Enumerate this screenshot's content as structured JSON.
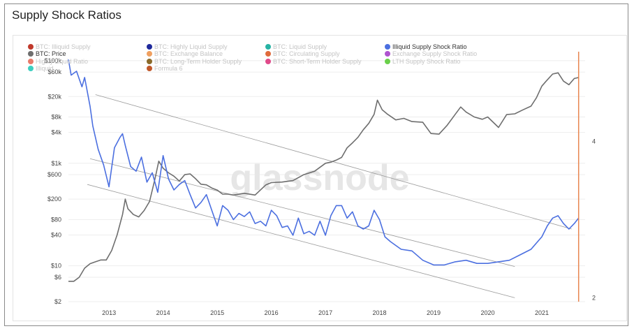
{
  "header": {
    "title": "Supply Shock Ratios"
  },
  "watermark": "glassnode",
  "colors": {
    "price": "#6e6e6e",
    "ratio": "#4b6fe0",
    "marker": "#e8854f",
    "channel": "#9a9a9a",
    "grid": "#ededed"
  },
  "legend": [
    {
      "label": "BTC: Illiquid Supply",
      "color": "#c0392b",
      "active": false
    },
    {
      "label": "BTC: Highly Liquid Supply",
      "color": "#1f2a9b",
      "active": false
    },
    {
      "label": "BTC: Liquid Supply",
      "color": "#27b3a4",
      "active": false
    },
    {
      "label": "Illiquid Supply Shock Ratio",
      "color": "#4b6fe0",
      "active": true
    },
    {
      "label": "BTC: Price",
      "color": "#6e6e6e",
      "active": true
    },
    {
      "label": "BTC: Exchange Balance",
      "color": "#f0a060",
      "active": false
    },
    {
      "label": "BTC: Circulating Supply",
      "color": "#e06b3c",
      "active": false
    },
    {
      "label": "Exchange Supply Shock Ratio",
      "color": "#b054d0",
      "active": false
    },
    {
      "label": "Highly Liquid Ratio",
      "color": "#e87a6a",
      "active": false
    },
    {
      "label": "BTC: Long-Term Holder Supply",
      "color": "#8a6a2a",
      "active": false
    },
    {
      "label": "BTC: Short-Term Holder Supply",
      "color": "#e04a8a",
      "active": false
    },
    {
      "label": "LTH Supply Shock Ratio",
      "color": "#6ad04a",
      "active": false
    },
    {
      "label": "Illiquid",
      "color": "#3ccfc0",
      "active": false
    },
    {
      "label": "Formula 6",
      "color": "#c0582a",
      "active": false
    }
  ],
  "chart_data": {
    "type": "line",
    "title": "Supply Shock Ratios",
    "x_ticks": [
      "2013",
      "2014",
      "2015",
      "2016",
      "2017",
      "2018",
      "2019",
      "2020",
      "2021"
    ],
    "x_range": [
      2012.25,
      2021.8
    ],
    "y_left": {
      "scale": "log",
      "range": [
        2,
        150000
      ],
      "ticks": [
        "$2",
        "$6",
        "$10",
        "$40",
        "$80",
        "$200",
        "$600",
        "$1k",
        "$4k",
        "$8k",
        "$20k",
        "$60k",
        "$100k"
      ],
      "tick_values": [
        2,
        6,
        10,
        40,
        80,
        200,
        600,
        1000,
        4000,
        8000,
        20000,
        60000,
        100000
      ]
    },
    "y_right": {
      "scale": "linear",
      "range": [
        1.95,
        5.15
      ],
      "ticks": [
        "2",
        "4"
      ],
      "tick_values": [
        2,
        4
      ]
    },
    "marker_x": 2021.68,
    "series": [
      {
        "name": "BTC: Price",
        "axis": "left",
        "color": "#6e6e6e",
        "x": [
          2012.25,
          2012.35,
          2012.45,
          2012.55,
          2012.65,
          2012.75,
          2012.85,
          2012.95,
          2013.05,
          2013.15,
          2013.25,
          2013.3,
          2013.35,
          2013.45,
          2013.55,
          2013.65,
          2013.75,
          2013.85,
          2013.92,
          2014.0,
          2014.1,
          2014.2,
          2014.3,
          2014.4,
          2014.5,
          2014.6,
          2014.7,
          2014.8,
          2014.9,
          2015.0,
          2015.1,
          2015.2,
          2015.3,
          2015.5,
          2015.7,
          2015.9,
          2016.0,
          2016.2,
          2016.4,
          2016.6,
          2016.8,
          2017.0,
          2017.1,
          2017.2,
          2017.3,
          2017.4,
          2017.5,
          2017.6,
          2017.7,
          2017.8,
          2017.9,
          2017.96,
          2018.05,
          2018.15,
          2018.3,
          2018.45,
          2018.6,
          2018.8,
          2018.95,
          2019.1,
          2019.25,
          2019.4,
          2019.5,
          2019.6,
          2019.75,
          2019.9,
          2020.0,
          2020.2,
          2020.35,
          2020.5,
          2020.65,
          2020.8,
          2020.9,
          2021.0,
          2021.08,
          2021.2,
          2021.3,
          2021.4,
          2021.5,
          2021.6,
          2021.68
        ],
        "values": [
          5,
          5,
          6,
          9,
          11,
          12,
          13,
          13,
          20,
          40,
          100,
          200,
          130,
          100,
          90,
          120,
          180,
          500,
          1100,
          800,
          650,
          560,
          450,
          600,
          620,
          500,
          390,
          380,
          330,
          300,
          250,
          250,
          240,
          260,
          240,
          380,
          420,
          430,
          460,
          600,
          700,
          1000,
          1050,
          1150,
          1300,
          2000,
          2500,
          3200,
          4500,
          6000,
          9000,
          17000,
          11000,
          9000,
          7000,
          7500,
          6500,
          6300,
          3800,
          3700,
          5500,
          9000,
          12500,
          10000,
          8000,
          7200,
          8000,
          5000,
          8900,
          9200,
          11000,
          13000,
          19000,
          32000,
          40000,
          55000,
          58000,
          40000,
          34000,
          45000,
          47000
        ]
      },
      {
        "name": "Illiquid Supply Shock Ratio",
        "axis": "right",
        "color": "#4b6fe0",
        "x": [
          2012.25,
          2012.3,
          2012.4,
          2012.5,
          2012.55,
          2012.65,
          2012.7,
          2012.8,
          2012.9,
          2013.0,
          2013.1,
          2013.2,
          2013.25,
          2013.3,
          2013.4,
          2013.5,
          2013.6,
          2013.7,
          2013.8,
          2013.9,
          2014.0,
          2014.1,
          2014.2,
          2014.3,
          2014.4,
          2014.5,
          2014.6,
          2014.7,
          2014.8,
          2014.9,
          2015.0,
          2015.1,
          2015.2,
          2015.3,
          2015.4,
          2015.5,
          2015.6,
          2015.7,
          2015.8,
          2015.9,
          2016.0,
          2016.1,
          2016.2,
          2016.3,
          2016.4,
          2016.5,
          2016.6,
          2016.7,
          2016.8,
          2016.9,
          2017.0,
          2017.1,
          2017.2,
          2017.3,
          2017.4,
          2017.5,
          2017.6,
          2017.7,
          2017.8,
          2017.9,
          2018.0,
          2018.1,
          2018.2,
          2018.4,
          2018.6,
          2018.8,
          2019.0,
          2019.2,
          2019.4,
          2019.6,
          2019.8,
          2020.0,
          2020.2,
          2020.4,
          2020.6,
          2020.8,
          2021.0,
          2021.1,
          2021.2,
          2021.3,
          2021.4,
          2021.5,
          2021.6,
          2021.68
        ],
        "values": [
          5.05,
          4.85,
          4.9,
          4.7,
          4.82,
          4.45,
          4.2,
          3.9,
          3.7,
          3.42,
          3.92,
          4.05,
          4.1,
          3.95,
          3.68,
          3.62,
          3.8,
          3.48,
          3.6,
          3.35,
          3.82,
          3.52,
          3.38,
          3.45,
          3.5,
          3.32,
          3.15,
          3.22,
          3.32,
          3.12,
          2.92,
          3.18,
          3.12,
          3.0,
          3.08,
          3.04,
          3.1,
          2.95,
          2.98,
          2.92,
          3.12,
          3.05,
          2.9,
          2.92,
          2.8,
          3.02,
          2.82,
          2.85,
          2.8,
          2.98,
          2.8,
          3.05,
          3.18,
          3.18,
          3.02,
          3.1,
          2.92,
          2.88,
          2.92,
          3.12,
          3.0,
          2.78,
          2.72,
          2.62,
          2.6,
          2.48,
          2.42,
          2.42,
          2.46,
          2.48,
          2.44,
          2.44,
          2.46,
          2.48,
          2.55,
          2.62,
          2.78,
          2.92,
          3.02,
          3.05,
          2.95,
          2.88,
          2.95,
          3.02
        ]
      }
    ],
    "channel_lines": [
      {
        "x": [
          2012.75,
          2021.55
        ],
        "y": [
          4.6,
          2.88
        ]
      },
      {
        "x": [
          2012.65,
          2020.5
        ],
        "y": [
          3.78,
          2.4
        ]
      },
      {
        "x": [
          2012.6,
          2020.5
        ],
        "y": [
          3.45,
          2.0
        ]
      }
    ]
  }
}
